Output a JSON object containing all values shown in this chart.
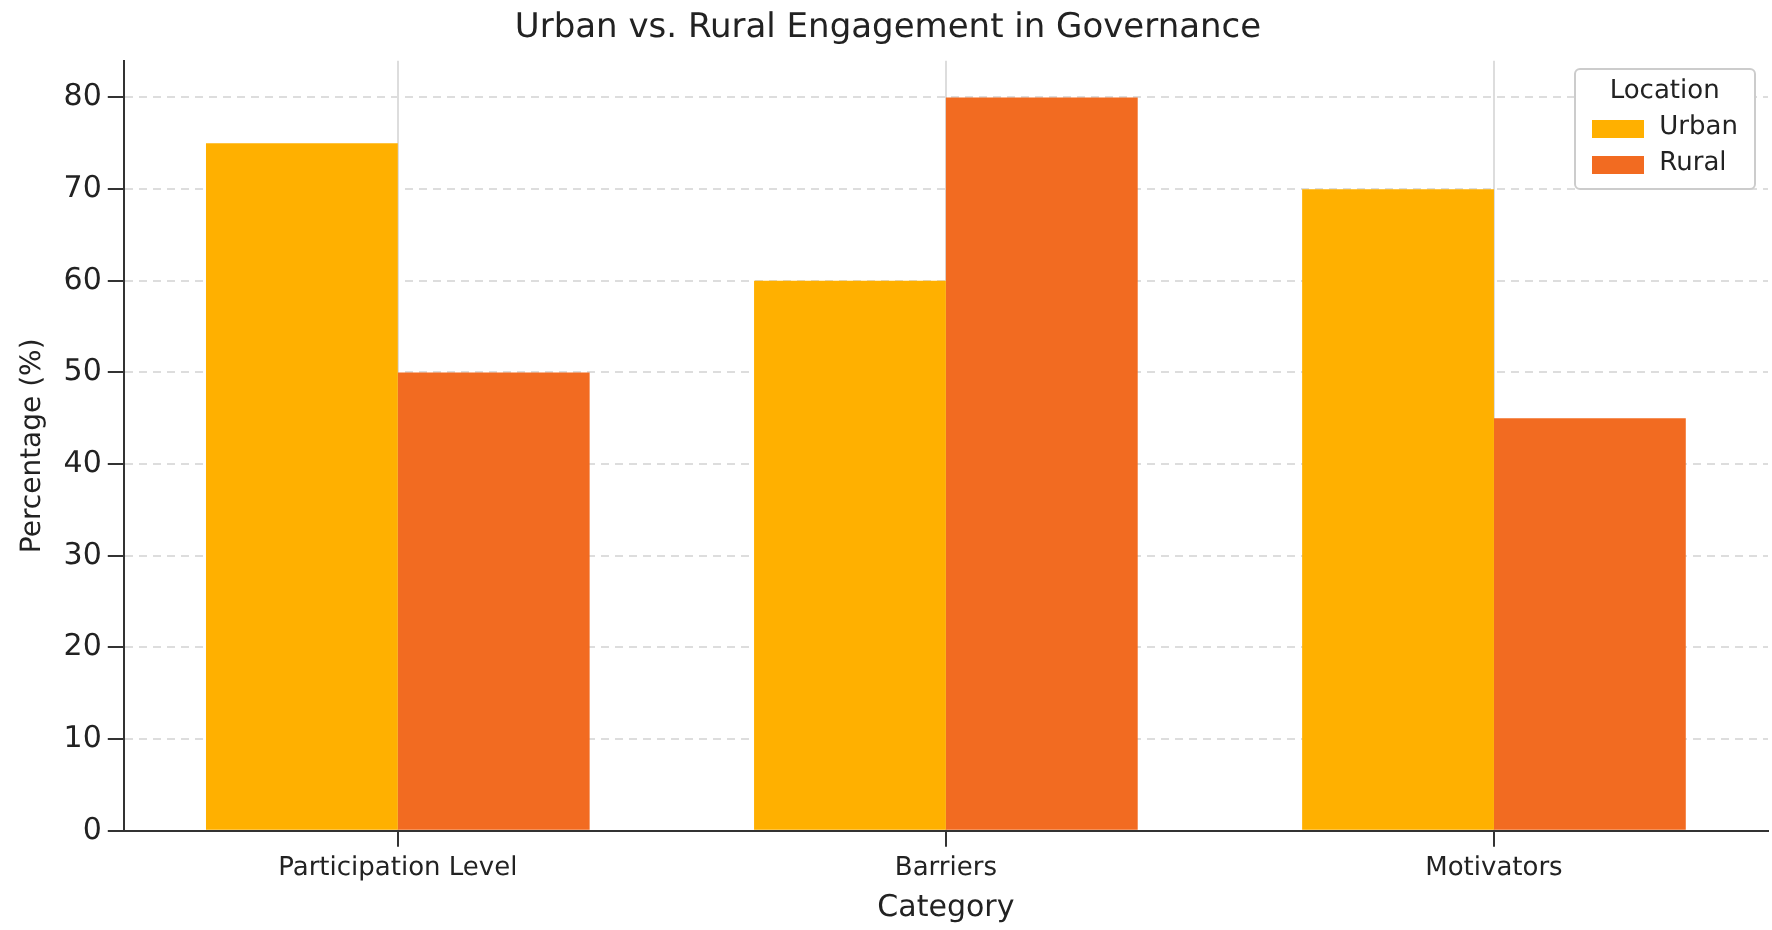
{
  "chart_data": {
    "type": "bar",
    "title": "Urban vs. Rural Engagement in Governance",
    "xlabel": "Category",
    "ylabel": "Percentage (%)",
    "legend_title": "Location",
    "categories": [
      "Participation Level",
      "Barriers",
      "Motivators"
    ],
    "series": [
      {
        "name": "Urban",
        "color": "#ffb000",
        "values": [
          75,
          60,
          70
        ]
      },
      {
        "name": "Rural",
        "color": "#f26b21",
        "values": [
          50,
          80,
          45
        ]
      }
    ],
    "ylim": [
      0,
      84
    ],
    "yticks": [
      0,
      10,
      20,
      30,
      40,
      50,
      60,
      70,
      80
    ],
    "grid": true,
    "legend": "top right"
  }
}
